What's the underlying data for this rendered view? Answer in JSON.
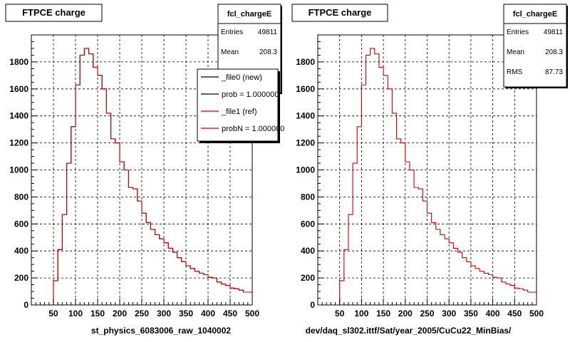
{
  "chart_data": [
    {
      "type": "histogram",
      "title": "FTPCE charge",
      "xlabel": "st_physics_6083006_raw_1040002",
      "xlim": [
        0,
        500
      ],
      "ylim": [
        0,
        2000
      ],
      "x_ticks": [
        50,
        100,
        150,
        200,
        250,
        300,
        350,
        400,
        450,
        500
      ],
      "y_ticks": [
        0,
        200,
        400,
        600,
        800,
        1000,
        1200,
        1400,
        1600,
        1800
      ],
      "grid": true,
      "bin_width": 10,
      "series": [
        {
          "name": "_file0 (new)",
          "color": "#000000",
          "values": [
            0,
            0,
            0,
            0,
            0,
            180,
            410,
            670,
            1050,
            1320,
            1630,
            1850,
            1900,
            1860,
            1760,
            1700,
            1600,
            1420,
            1230,
            1200,
            1060,
            1000,
            870,
            860,
            770,
            680,
            610,
            560,
            520,
            490,
            460,
            420,
            390,
            350,
            320,
            290,
            270,
            250,
            235,
            225,
            205,
            200,
            170,
            155,
            145,
            125,
            120,
            110,
            95,
            95
          ]
        },
        {
          "name": "_file1 (ref)",
          "color": "#cc0000",
          "values": [
            0,
            0,
            0,
            0,
            0,
            180,
            410,
            670,
            1050,
            1320,
            1630,
            1850,
            1900,
            1860,
            1760,
            1700,
            1600,
            1420,
            1230,
            1200,
            1060,
            1000,
            870,
            860,
            770,
            680,
            610,
            560,
            520,
            490,
            460,
            420,
            390,
            350,
            320,
            290,
            270,
            250,
            235,
            225,
            205,
            200,
            170,
            155,
            145,
            125,
            120,
            110,
            95,
            95
          ]
        }
      ],
      "stats": {
        "name": "fcl_chargeE",
        "entries_label": "Entries",
        "entries": "49811",
        "mean_label": "Mean",
        "mean": "208.3"
      },
      "legend": [
        "_file0 (new)",
        "prob = 1.000000",
        "_file1 (ref)",
        "probN = 1.000000"
      ]
    },
    {
      "type": "histogram",
      "title": "FTPCE charge",
      "xlabel": "dev/daq_sl302.ittf/Sat/year_2005/CuCu22_MinBias/",
      "xlim": [
        0,
        500
      ],
      "ylim": [
        0,
        2000
      ],
      "x_ticks": [
        50,
        100,
        150,
        200,
        250,
        300,
        350,
        400,
        450,
        500
      ],
      "y_ticks": [
        0,
        200,
        400,
        600,
        800,
        1000,
        1200,
        1400,
        1600,
        1800
      ],
      "grid": true,
      "bin_width": 10,
      "series": [
        {
          "color": "#cc0000",
          "values": [
            0,
            0,
            0,
            0,
            0,
            180,
            410,
            670,
            1050,
            1320,
            1630,
            1850,
            1900,
            1860,
            1760,
            1700,
            1600,
            1420,
            1230,
            1200,
            1060,
            1000,
            870,
            860,
            770,
            680,
            610,
            560,
            520,
            490,
            460,
            420,
            390,
            350,
            320,
            290,
            270,
            250,
            235,
            225,
            205,
            200,
            170,
            155,
            145,
            125,
            120,
            110,
            95,
            95
          ]
        }
      ],
      "stats": {
        "name": "fcl_chargeE",
        "entries_label": "Entries",
        "entries": "49811",
        "mean_label": "Mean",
        "mean": "208.3",
        "rms_label": "RMS",
        "rms": "87.73"
      }
    }
  ]
}
